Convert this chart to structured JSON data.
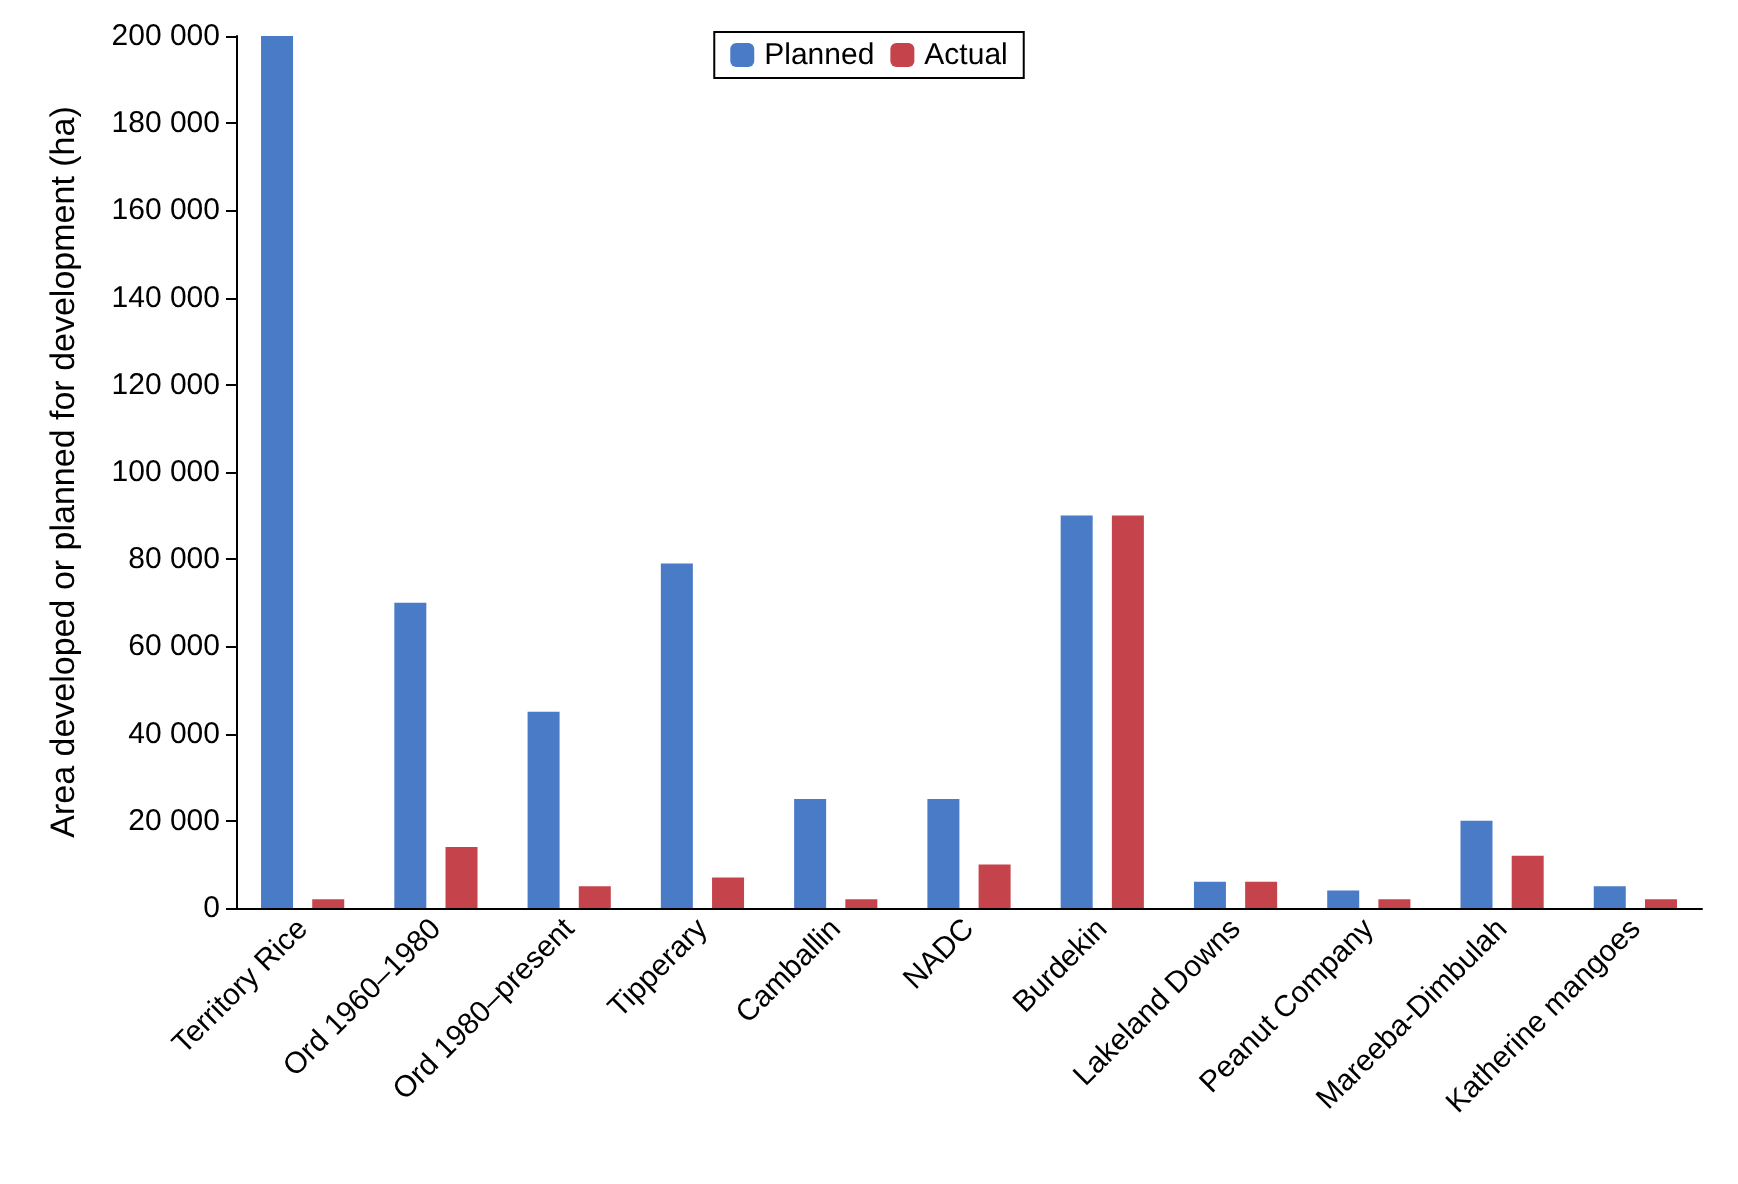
{
  "chart_data": {
    "type": "bar",
    "ylabel": "Area developed or planned for development (ha)",
    "categories": [
      "Territory Rice",
      "Ord 1960–1980",
      "Ord 1980–present",
      "Tipperary",
      "Camballin",
      "NADC",
      "Burdekin",
      "Lakeland Downs",
      "Peanut Company",
      "Mareeba-Dimbulah",
      "Katherine mangoes"
    ],
    "series": [
      {
        "name": "Planned",
        "color": "#4a7bc6",
        "values": [
          200000,
          70000,
          45000,
          79000,
          25000,
          25000,
          90000,
          6000,
          4000,
          20000,
          5000
        ]
      },
      {
        "name": "Actual",
        "color": "#c5434b",
        "values": [
          2000,
          14000,
          5000,
          7000,
          2000,
          10000,
          90000,
          6000,
          2000,
          12000,
          2000
        ]
      }
    ],
    "ylim": [
      0,
      200000
    ],
    "yticks": [
      {
        "value": 0,
        "label": "0"
      },
      {
        "value": 20000,
        "label": "20 000"
      },
      {
        "value": 40000,
        "label": "40 000"
      },
      {
        "value": 60000,
        "label": "60 000"
      },
      {
        "value": 80000,
        "label": "80 000"
      },
      {
        "value": 100000,
        "label": "100 000"
      },
      {
        "value": 120000,
        "label": "120 000"
      },
      {
        "value": 140000,
        "label": "140 000"
      },
      {
        "value": 160000,
        "label": "160 000"
      },
      {
        "value": 180000,
        "label": "180 000"
      },
      {
        "value": 200000,
        "label": "200 000"
      }
    ],
    "legend": "top",
    "grid": false
  }
}
